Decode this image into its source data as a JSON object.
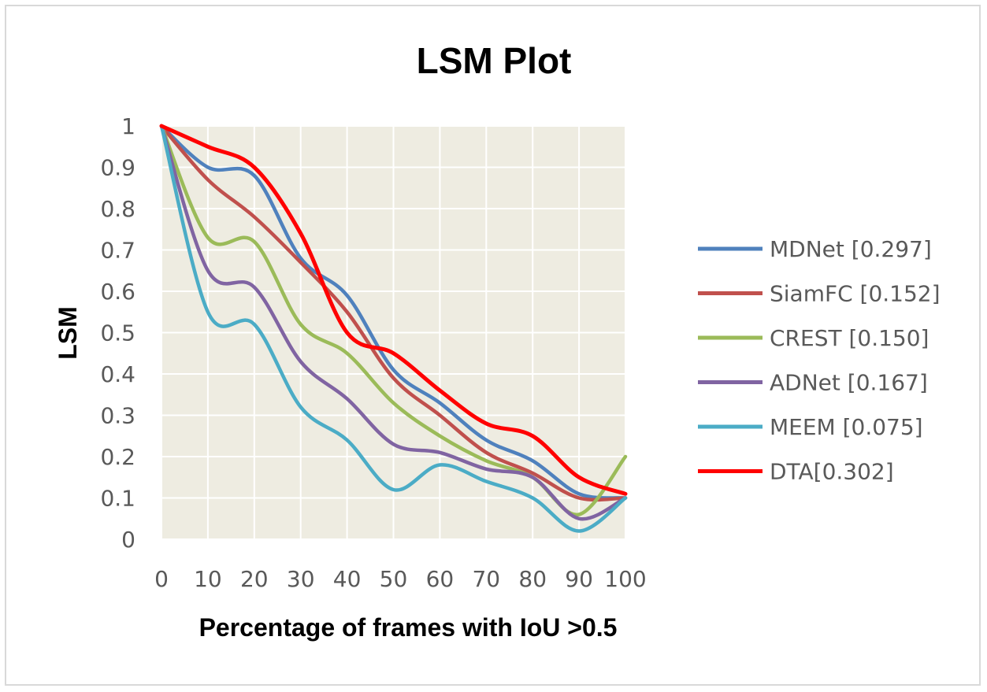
{
  "chart_data": {
    "type": "line",
    "title": "LSM Plot",
    "xlabel": "Percentage of frames with IoU >0.5",
    "ylabel": "LSM",
    "xlim": [
      0,
      100
    ],
    "ylim": [
      0,
      1
    ],
    "x_ticks": [
      "0",
      "10",
      "20",
      "30",
      "40",
      "50",
      "60",
      "70",
      "80",
      "90",
      "100"
    ],
    "y_ticks": [
      "0",
      "0.1",
      "0.2",
      "0.3",
      "0.4",
      "0.5",
      "0.6",
      "0.7",
      "0.8",
      "0.9",
      "1"
    ],
    "grid": true,
    "legend_position": "right",
    "plot_background": "#eeece1",
    "x": [
      0,
      10,
      20,
      30,
      40,
      50,
      60,
      70,
      80,
      90,
      100
    ],
    "series": [
      {
        "name": "MDNet [0.297]",
        "color": "#4f81bd",
        "values": [
          1,
          0.9,
          0.88,
          0.68,
          0.59,
          0.41,
          0.33,
          0.24,
          0.19,
          0.11,
          0.1
        ]
      },
      {
        "name": "SiamFC [0.152]",
        "color": "#c0504d",
        "values": [
          1,
          0.87,
          0.78,
          0.67,
          0.55,
          0.39,
          0.3,
          0.21,
          0.16,
          0.1,
          0.1
        ]
      },
      {
        "name": "CREST [0.150]",
        "color": "#9bbb59",
        "values": [
          1,
          0.73,
          0.72,
          0.52,
          0.45,
          0.33,
          0.25,
          0.19,
          0.15,
          0.06,
          0.2
        ]
      },
      {
        "name": "ADNet [0.167]",
        "color": "#8064a2",
        "values": [
          1,
          0.65,
          0.61,
          0.43,
          0.34,
          0.23,
          0.21,
          0.17,
          0.15,
          0.05,
          0.1
        ]
      },
      {
        "name": "MEEM [0.075]",
        "color": "#4bacc6",
        "values": [
          1,
          0.55,
          0.52,
          0.32,
          0.24,
          0.12,
          0.18,
          0.14,
          0.1,
          0.02,
          0.1
        ]
      },
      {
        "name": "DTA[0.302]",
        "color": "#ff0000",
        "values": [
          1,
          0.95,
          0.9,
          0.74,
          0.5,
          0.45,
          0.36,
          0.28,
          0.25,
          0.15,
          0.11
        ]
      }
    ]
  }
}
